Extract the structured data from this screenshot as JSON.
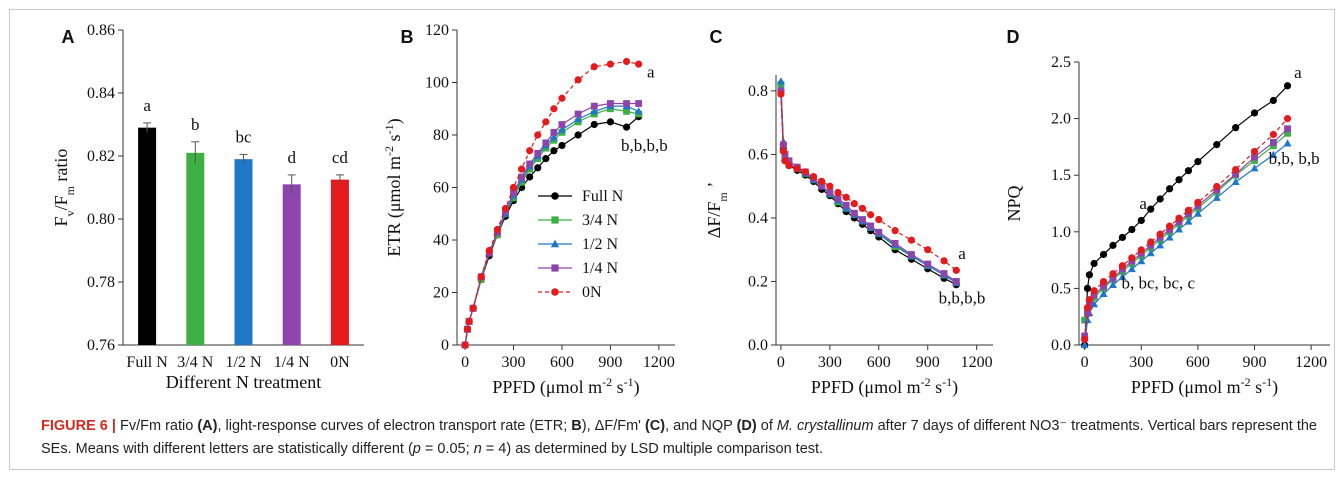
{
  "chart_data": [
    {
      "panel": "A",
      "type": "bar",
      "ylabel": "Fv/Fm ratio",
      "xlabel": "Different N treatment",
      "ylim": [
        0.76,
        0.86
      ],
      "yticks": [
        "0.76",
        "0.78",
        "0.80",
        "0.82",
        "0.84",
        "0.86"
      ],
      "categories": [
        "Full N",
        "3/4 N",
        "1/2 N",
        "1/4 N",
        "0N"
      ],
      "values": [
        0.829,
        0.821,
        0.819,
        0.811,
        0.8125
      ],
      "errors": [
        0.0015,
        0.0035,
        0.0015,
        0.003,
        0.0015
      ],
      "letters": [
        "a",
        "b",
        "bc",
        "d",
        "cd"
      ],
      "colors": [
        "#000000",
        "#3cb043",
        "#1f77c8",
        "#8e44ad",
        "#e41a1c"
      ]
    },
    {
      "panel": "B",
      "type": "line",
      "ylabel": "ETR (μmol m-2 s-1)",
      "xlabel": "PPFD (μmol m-2 s-1)",
      "xlim": [
        -50,
        1300
      ],
      "ylim": [
        0,
        120
      ],
      "xticks": [
        "0",
        "300",
        "600",
        "900",
        "1200"
      ],
      "yticks": [
        "0",
        "20",
        "40",
        "60",
        "80",
        "100",
        "120"
      ],
      "x": [
        0,
        15,
        25,
        50,
        100,
        150,
        200,
        250,
        300,
        350,
        400,
        450,
        500,
        550,
        600,
        700,
        800,
        900,
        1000,
        1075
      ],
      "series": [
        {
          "name": "Full N",
          "color": "#000000",
          "marker": "circle",
          "dash": false,
          "values": [
            0,
            6,
            9,
            14,
            25,
            34,
            42,
            49,
            55,
            60,
            64,
            67.5,
            71,
            74,
            76,
            80,
            84,
            85,
            83,
            87
          ]
        },
        {
          "name": "3/4 N",
          "color": "#3cb043",
          "marker": "square",
          "dash": false,
          "values": [
            0,
            6,
            9,
            14,
            25,
            35,
            42,
            50,
            56,
            62,
            67,
            71,
            75,
            78,
            81,
            85,
            88,
            90,
            89,
            88
          ]
        },
        {
          "name": "1/2 N",
          "color": "#1f77c8",
          "marker": "triangle",
          "dash": false,
          "values": [
            0,
            6,
            9,
            14,
            26,
            35,
            43,
            50,
            57,
            63,
            68,
            72,
            76,
            79,
            82,
            86,
            89,
            91,
            91,
            89
          ]
        },
        {
          "name": "1/4 N",
          "color": "#8e44ad",
          "marker": "square",
          "dash": false,
          "values": [
            0,
            6,
            9,
            14,
            26,
            35,
            43,
            51,
            58,
            64,
            69,
            73,
            77,
            81,
            84,
            88,
            91,
            92,
            92,
            92
          ]
        },
        {
          "name": "0N",
          "color": "#e41a1c",
          "marker": "circle",
          "dash": true,
          "values": [
            0,
            6,
            9,
            14,
            26,
            36,
            44,
            52,
            60,
            67,
            74,
            80,
            85,
            90,
            94,
            101,
            106,
            107,
            108,
            107
          ]
        }
      ],
      "annotations": [
        {
          "text": "a",
          "x": 1150,
          "y": 102
        },
        {
          "text": "b,b,b,b",
          "x": 1110,
          "y": 74
        }
      ]
    },
    {
      "panel": "C",
      "type": "line",
      "ylabel": "ΔF/Fm ’",
      "xlabel": "PPFD (μmol m-2 s-1)",
      "xlim": [
        -30,
        1300
      ],
      "ylim": [
        0,
        0.85
      ],
      "xticks": [
        "0",
        "300",
        "600",
        "900",
        "1200"
      ],
      "yticks": [
        "0.0",
        "0.2",
        "0.4",
        "0.6",
        "0.8"
      ],
      "x": [
        0,
        15,
        25,
        50,
        100,
        150,
        200,
        250,
        300,
        350,
        400,
        450,
        500,
        550,
        600,
        700,
        800,
        900,
        1000,
        1075
      ],
      "series": [
        {
          "name": "Full N",
          "color": "#000000",
          "marker": "circle",
          "dash": false,
          "values": [
            0.8,
            0.62,
            0.58,
            0.565,
            0.55,
            0.535,
            0.515,
            0.49,
            0.47,
            0.445,
            0.42,
            0.4,
            0.38,
            0.36,
            0.34,
            0.3,
            0.27,
            0.24,
            0.21,
            0.19
          ]
        },
        {
          "name": "3/4 N",
          "color": "#3cb043",
          "marker": "square",
          "dash": false,
          "values": [
            0.82,
            0.63,
            0.59,
            0.57,
            0.555,
            0.54,
            0.52,
            0.5,
            0.475,
            0.45,
            0.43,
            0.41,
            0.39,
            0.37,
            0.35,
            0.31,
            0.28,
            0.25,
            0.22,
            0.2
          ]
        },
        {
          "name": "1/2 N",
          "color": "#1f77c8",
          "marker": "triangle",
          "dash": false,
          "values": [
            0.83,
            0.64,
            0.59,
            0.57,
            0.555,
            0.54,
            0.52,
            0.5,
            0.475,
            0.455,
            0.43,
            0.41,
            0.39,
            0.37,
            0.35,
            0.315,
            0.28,
            0.25,
            0.22,
            0.195
          ]
        },
        {
          "name": "1/4 N",
          "color": "#8e44ad",
          "marker": "square",
          "dash": false,
          "values": [
            0.8,
            0.63,
            0.6,
            0.58,
            0.56,
            0.545,
            0.525,
            0.5,
            0.48,
            0.46,
            0.44,
            0.415,
            0.395,
            0.375,
            0.355,
            0.32,
            0.285,
            0.255,
            0.225,
            0.2
          ]
        },
        {
          "name": "0N",
          "color": "#e41a1c",
          "marker": "circle",
          "dash": true,
          "values": [
            0.79,
            0.61,
            0.58,
            0.565,
            0.555,
            0.545,
            0.53,
            0.515,
            0.5,
            0.48,
            0.465,
            0.445,
            0.43,
            0.41,
            0.395,
            0.36,
            0.33,
            0.3,
            0.265,
            0.235
          ]
        }
      ],
      "annotations": [
        {
          "text": "a",
          "x": 1110,
          "y": 0.27
        },
        {
          "text": "b,b,b,b",
          "x": 1110,
          "y": 0.13
        }
      ]
    },
    {
      "panel": "D",
      "type": "line",
      "ylabel": "NPQ",
      "xlabel": "PPFD (μmol m-2 s-1)",
      "xlim": [
        -30,
        1300
      ],
      "ylim": [
        0,
        2.5
      ],
      "xticks": [
        "0",
        "300",
        "600",
        "900",
        "1200"
      ],
      "yticks": [
        "0.0",
        "0.5",
        "1.0",
        "1.5",
        "2.0",
        "2.5"
      ],
      "x": [
        0,
        15,
        25,
        50,
        100,
        150,
        200,
        250,
        300,
        350,
        400,
        450,
        500,
        550,
        600,
        700,
        800,
        900,
        1000,
        1075
      ],
      "series": [
        {
          "name": "Full N",
          "color": "#000000",
          "marker": "circle",
          "dash": false,
          "values": [
            0,
            0.5,
            0.62,
            0.72,
            0.8,
            0.88,
            0.95,
            1.02,
            1.1,
            1.2,
            1.29,
            1.38,
            1.46,
            1.54,
            1.62,
            1.77,
            1.92,
            2.05,
            2.16,
            2.29
          ]
        },
        {
          "name": "3/4 N",
          "color": "#3cb043",
          "marker": "square",
          "dash": false,
          "values": [
            0.22,
            0.3,
            0.35,
            0.42,
            0.5,
            0.58,
            0.65,
            0.72,
            0.79,
            0.86,
            0.93,
            1.0,
            1.07,
            1.14,
            1.21,
            1.35,
            1.5,
            1.63,
            1.76,
            1.87
          ]
        },
        {
          "name": "1/2 N",
          "color": "#1f77c8",
          "marker": "triangle",
          "dash": false,
          "values": [
            0,
            0.22,
            0.28,
            0.36,
            0.45,
            0.53,
            0.6,
            0.67,
            0.74,
            0.81,
            0.88,
            0.95,
            1.02,
            1.09,
            1.16,
            1.3,
            1.44,
            1.56,
            1.68,
            1.78
          ]
        },
        {
          "name": "1/4 N",
          "color": "#8e44ad",
          "marker": "square",
          "dash": false,
          "values": [
            0.08,
            0.28,
            0.36,
            0.44,
            0.52,
            0.59,
            0.67,
            0.74,
            0.81,
            0.88,
            0.95,
            1.02,
            1.09,
            1.16,
            1.23,
            1.37,
            1.51,
            1.66,
            1.79,
            1.91
          ]
        },
        {
          "name": "0N",
          "color": "#e41a1c",
          "marker": "circle",
          "dash": true,
          "values": [
            0.05,
            0.33,
            0.4,
            0.48,
            0.56,
            0.63,
            0.7,
            0.77,
            0.84,
            0.91,
            0.98,
            1.05,
            1.12,
            1.19,
            1.26,
            1.4,
            1.55,
            1.71,
            1.86,
            2.0
          ]
        }
      ],
      "annotations": [
        {
          "text": "a",
          "x": 1130,
          "y": 2.36
        },
        {
          "text": "b,b, b,b",
          "x": 1110,
          "y": 1.6
        },
        {
          "text": "a",
          "x": 310,
          "y": 1.2
        },
        {
          "text": "b, bc, bc, c",
          "x": 390,
          "y": 0.5
        }
      ]
    }
  ],
  "caption": {
    "figure_label": "FIGURE 6",
    "separator": "|",
    "text_1": "Fv/Fm ratio",
    "bold_A": "(A)",
    "text_2": ", light-response curves of electron transport rate (ETR;",
    "bold_B": "B",
    "text_3": "), ΔF/Fm'",
    "bold_C": "(C)",
    "text_4": ", and NQP",
    "bold_D": "(D)",
    "text_5": "of",
    "species": "M. crystallinum",
    "text_6": "after 7 days of different NO3⁻ treatments. Vertical bars represent the SEs. Means with different letters are statistically different (",
    "p_var": "p",
    "text_7": "= 0.05;",
    "n_var": "n",
    "text_8": "= 4) as determined by LSD multiple comparison test."
  }
}
